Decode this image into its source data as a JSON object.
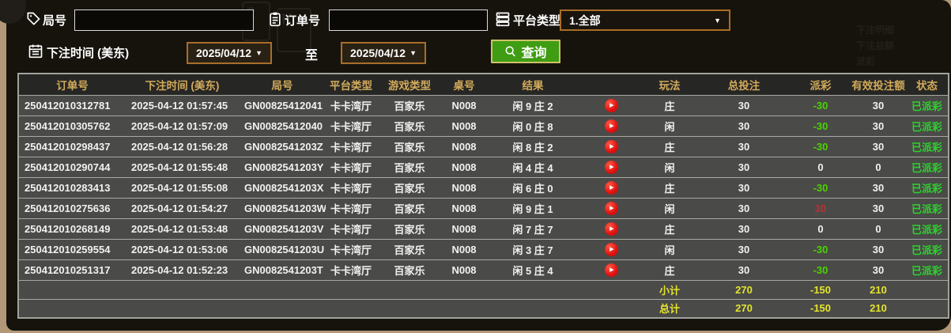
{
  "filters": {
    "round_label": "局号",
    "round_value": "",
    "order_label": "订单号",
    "order_value": "",
    "platform_label": "平台类型",
    "platform_value": "1.全部",
    "bet_time_label": "下注时间 (美东)",
    "date_from": "2025/04/12",
    "to_label": "至",
    "date_to": "2025/04/12",
    "query_label": "查询",
    "dropdown_arrow": "▼",
    "play_glyph": "▶"
  },
  "icons": {
    "round": "tag-icon",
    "order": "clipboard-icon",
    "platform": "server-list-icon",
    "bet_time": "calendar-icon",
    "query": "magnifier-icon",
    "play": "play-icon"
  },
  "colors": {
    "query_button_green": "#3f9d13",
    "payout_negative_green": "#49d400",
    "payout_positive_red": "#b53434",
    "status_paid_green": "#2dd22d",
    "totals_yellow": "#e4e42c",
    "header_gold": "#d2ab5c",
    "date_border_orange": "#a96e2a"
  },
  "table": {
    "columns": [
      "订单号",
      "下注时间 (美东)",
      "局号",
      "平台类型",
      "游戏类型",
      "桌号",
      "结果",
      "玩法",
      "总投注",
      "派彩",
      "有效投注额",
      "状态"
    ],
    "rows": [
      {
        "order_no": "250412010312781",
        "bet_time": "2025-04-12 01:57:45",
        "round_no": "GN00825412041",
        "platform": "卡卡湾厅",
        "game": "百家乐",
        "table_no": "N008",
        "result": "闲 9 庄 2",
        "play": "庄",
        "total_bet": "30",
        "payout": "-30",
        "payout_color": "green",
        "valid_bet": "30",
        "status": "已派彩"
      },
      {
        "order_no": "250412010305762",
        "bet_time": "2025-04-12 01:57:09",
        "round_no": "GN00825412040",
        "platform": "卡卡湾厅",
        "game": "百家乐",
        "table_no": "N008",
        "result": "闲 0 庄 8",
        "play": "闲",
        "total_bet": "30",
        "payout": "-30",
        "payout_color": "green",
        "valid_bet": "30",
        "status": "已派彩"
      },
      {
        "order_no": "250412010298437",
        "bet_time": "2025-04-12 01:56:28",
        "round_no": "GN0082541203Z",
        "platform": "卡卡湾厅",
        "game": "百家乐",
        "table_no": "N008",
        "result": "闲 8 庄 2",
        "play": "庄",
        "total_bet": "30",
        "payout": "-30",
        "payout_color": "green",
        "valid_bet": "30",
        "status": "已派彩"
      },
      {
        "order_no": "250412010290744",
        "bet_time": "2025-04-12 01:55:48",
        "round_no": "GN0082541203Y",
        "platform": "卡卡湾厅",
        "game": "百家乐",
        "table_no": "N008",
        "result": "闲 4 庄 4",
        "play": "闲",
        "total_bet": "30",
        "payout": "0",
        "payout_color": "plain",
        "valid_bet": "0",
        "status": "已派彩"
      },
      {
        "order_no": "250412010283413",
        "bet_time": "2025-04-12 01:55:08",
        "round_no": "GN0082541203X",
        "platform": "卡卡湾厅",
        "game": "百家乐",
        "table_no": "N008",
        "result": "闲 6 庄 0",
        "play": "庄",
        "total_bet": "30",
        "payout": "-30",
        "payout_color": "green",
        "valid_bet": "30",
        "status": "已派彩"
      },
      {
        "order_no": "250412010275636",
        "bet_time": "2025-04-12 01:54:27",
        "round_no": "GN0082541203W",
        "platform": "卡卡湾厅",
        "game": "百家乐",
        "table_no": "N008",
        "result": "闲 9 庄 1",
        "play": "闲",
        "total_bet": "30",
        "payout": "30",
        "payout_color": "red",
        "valid_bet": "30",
        "status": "已派彩"
      },
      {
        "order_no": "250412010268149",
        "bet_time": "2025-04-12 01:53:48",
        "round_no": "GN0082541203V",
        "platform": "卡卡湾厅",
        "game": "百家乐",
        "table_no": "N008",
        "result": "闲 7 庄 7",
        "play": "庄",
        "total_bet": "30",
        "payout": "0",
        "payout_color": "plain",
        "valid_bet": "0",
        "status": "已派彩"
      },
      {
        "order_no": "250412010259554",
        "bet_time": "2025-04-12 01:53:06",
        "round_no": "GN0082541203U",
        "platform": "卡卡湾厅",
        "game": "百家乐",
        "table_no": "N008",
        "result": "闲 3 庄 7",
        "play": "闲",
        "total_bet": "30",
        "payout": "-30",
        "payout_color": "green",
        "valid_bet": "30",
        "status": "已派彩"
      },
      {
        "order_no": "250412010251317",
        "bet_time": "2025-04-12 01:52:23",
        "round_no": "GN0082541203T",
        "platform": "卡卡湾厅",
        "game": "百家乐",
        "table_no": "N008",
        "result": "闲 5 庄 4",
        "play": "庄",
        "total_bet": "30",
        "payout": "-30",
        "payout_color": "green",
        "valid_bet": "30",
        "status": "已派彩"
      }
    ],
    "subtotal": {
      "label": "小计",
      "total_bet": "270",
      "payout": "-150",
      "valid_bet": "210"
    },
    "total": {
      "label": "总计",
      "total_bet": "270",
      "payout": "-150",
      "valid_bet": "210"
    }
  }
}
